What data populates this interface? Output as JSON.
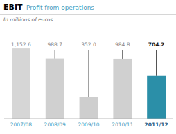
{
  "chart_data": {
    "type": "bar",
    "title": "EBIT",
    "subtitle": "Profit from operations",
    "annotations": [
      "In millions of euros"
    ],
    "categories": [
      "2007/08",
      "2008/09",
      "2009/10",
      "2010/11",
      "2011/12"
    ],
    "values": [
      1152.6,
      988.7,
      352.0,
      984.8,
      704.2
    ],
    "value_labels": [
      "1,152.6",
      "988.7",
      "352.0",
      "984.8",
      "704.2"
    ],
    "colors": [
      "#d6d6d6",
      "#d0d0d0",
      "#cecece",
      "#d0d0d0",
      "#2b8fa8"
    ],
    "line_top": 1120.0,
    "ylim": [
      0,
      1380
    ],
    "data_labels": true,
    "tick_labels": "x",
    "grid": false
  }
}
